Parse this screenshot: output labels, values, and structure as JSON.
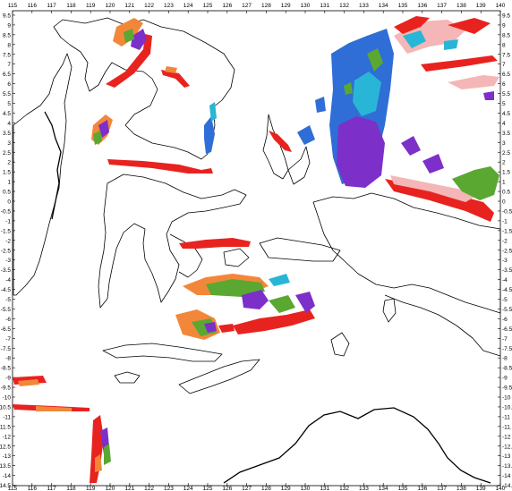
{
  "map": {
    "x_axis": {
      "min": 115,
      "max": 140,
      "step": 1,
      "labels": [
        "115",
        "116",
        "117",
        "118",
        "119",
        "120",
        "121",
        "122",
        "123",
        "124",
        "125",
        "126",
        "127",
        "128",
        "129",
        "130",
        "131",
        "132",
        "133",
        "134",
        "135",
        "136",
        "137",
        "138",
        "139",
        "140"
      ]
    },
    "y_axis": {
      "labels": [
        "10",
        "9.5",
        "9",
        "8.5",
        "8",
        "7.5",
        "7",
        "6.5",
        "6",
        "5.5",
        "5",
        "4.5",
        "4",
        "3.5",
        "3",
        "2.5",
        "2",
        "1.5",
        "1",
        "0.5",
        "0",
        "-0.5",
        "-1",
        "-1.5",
        "-2",
        "-2.5",
        "-3",
        "-3.5",
        "-4",
        "-4.5",
        "-5",
        "-5.5",
        "-6",
        "-6.5",
        "-7",
        "-7.5",
        "-8",
        "-8.5",
        "-9",
        "-9.5",
        "-10",
        "-10.5",
        "-11",
        "-11.5",
        "-12",
        "-12.5",
        "-13",
        "-13.5",
        "-14",
        "-14.5"
      ]
    },
    "colors": {
      "red": "#e8231f",
      "orange": "#f2873a",
      "green": "#5aa832",
      "purple": "#7d2fc9",
      "blue": "#2f6ed6",
      "cyan": "#29b6d6",
      "pink": "#f4b6b6",
      "coastline": "#000000"
    }
  }
}
